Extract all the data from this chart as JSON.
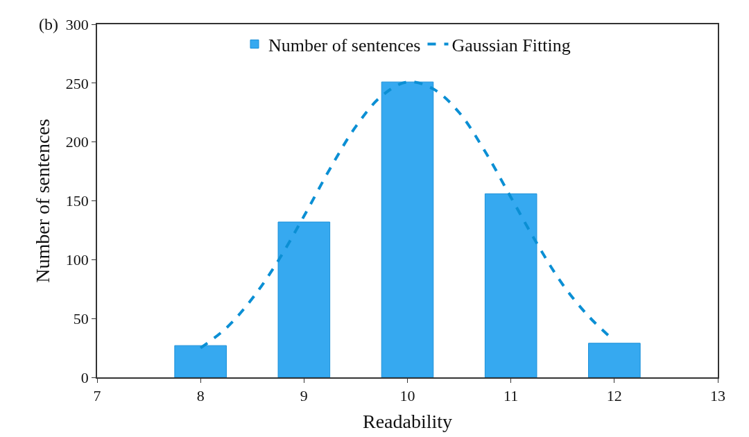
{
  "chart_data": {
    "type": "bar",
    "xlabel": "Readability",
    "ylabel": "Number of sentences",
    "annotations": [
      "(b)"
    ],
    "xlim": [
      7,
      13
    ],
    "xticks": [
      7,
      8,
      9,
      10,
      11,
      12,
      13
    ],
    "ylim": [
      0,
      300
    ],
    "yticks": [
      0,
      50,
      100,
      150,
      200,
      250,
      300
    ],
    "legend": "top",
    "series": [
      {
        "name": "Number of sentences",
        "color": "#36a9f0",
        "x": [
          8,
          9,
          10,
          11,
          12
        ],
        "values": [
          27,
          132,
          251,
          156,
          29
        ]
      },
      {
        "name": "Gaussian Fitting",
        "type": "line",
        "line_style": "dashed",
        "marker": "none",
        "color": "#0b8fd4",
        "x": [
          8,
          8.25,
          8.5,
          8.75,
          9,
          9.25,
          9.5,
          9.75,
          10,
          10.25,
          10.5,
          10.75,
          11,
          11.25,
          11.5,
          11.75,
          12
        ],
        "values": [
          25,
          42,
          67,
          99,
          137,
          177,
          213,
          239,
          251,
          245,
          225,
          192,
          153,
          114,
          79,
          52,
          31
        ]
      }
    ]
  }
}
